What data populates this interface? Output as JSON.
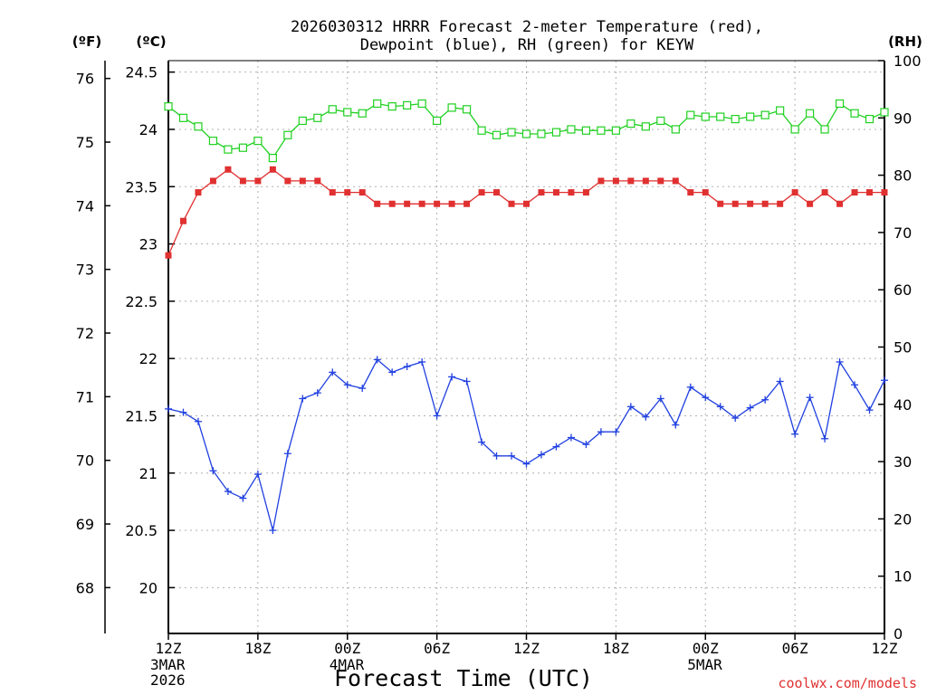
{
  "chart_data": {
    "type": "line",
    "title_lines": [
      "2026030312 HRRR Forecast 2-meter Temperature (red),",
      "Dewpoint (blue), RH (green) for KEYW"
    ],
    "xlabel": "Forecast Time (UTC)",
    "credit": "coolwx.com/models",
    "unit_labels": {
      "f": "(ºF)",
      "c": "(ºC)",
      "rh": "(RH)"
    },
    "x_ticks": [
      {
        "hour": 0,
        "label": "12Z",
        "sub": [
          "3MAR",
          "2026"
        ]
      },
      {
        "hour": 6,
        "label": "18Z",
        "sub": []
      },
      {
        "hour": 12,
        "label": "00Z",
        "sub": [
          "4MAR"
        ]
      },
      {
        "hour": 18,
        "label": "06Z",
        "sub": []
      },
      {
        "hour": 24,
        "label": "12Z",
        "sub": []
      },
      {
        "hour": 30,
        "label": "18Z",
        "sub": []
      },
      {
        "hour": 36,
        "label": "00Z",
        "sub": [
          "5MAR"
        ]
      },
      {
        "hour": 42,
        "label": "06Z",
        "sub": []
      },
      {
        "hour": 48,
        "label": "12Z",
        "sub": []
      }
    ],
    "xlim": [
      0,
      48
    ],
    "c_axis": {
      "ylim": [
        19.6,
        24.6
      ],
      "ticks": [
        "20",
        "20.5",
        "21",
        "21.5",
        "22",
        "22.5",
        "23",
        "23.5",
        "24",
        "24.5"
      ]
    },
    "f_axis": {
      "ylim": [
        67.28,
        76.28
      ],
      "ticks": [
        "68",
        "69",
        "70",
        "71",
        "72",
        "73",
        "74",
        "75",
        "76"
      ]
    },
    "rh_axis": {
      "ylim": [
        0,
        100
      ],
      "ticks": [
        "0",
        "10",
        "20",
        "30",
        "40",
        "50",
        "60",
        "70",
        "80",
        "90",
        "100"
      ]
    },
    "series": [
      {
        "name": "Temperature",
        "axis": "c",
        "color": "#e03030",
        "marker": "filled-square",
        "values": [
          22.9,
          23.2,
          23.45,
          23.55,
          23.65,
          23.55,
          23.55,
          23.65,
          23.55,
          23.55,
          23.55,
          23.45,
          23.45,
          23.45,
          23.35,
          23.35,
          23.35,
          23.35,
          23.35,
          23.35,
          23.35,
          23.45,
          23.45,
          23.35,
          23.35,
          23.45,
          23.45,
          23.45,
          23.45,
          23.55,
          23.55,
          23.55,
          23.55,
          23.55,
          23.55,
          23.45,
          23.45,
          23.35,
          23.35,
          23.35,
          23.35,
          23.35,
          23.45,
          23.35,
          23.45,
          23.35,
          23.45,
          23.45,
          23.45
        ]
      },
      {
        "name": "Dewpoint",
        "axis": "c",
        "color": "#2040e0",
        "marker": "plus",
        "values": [
          21.56,
          21.53,
          21.45,
          21.02,
          20.84,
          20.78,
          20.99,
          20.5,
          21.17,
          21.65,
          21.7,
          21.88,
          21.77,
          21.74,
          21.99,
          21.88,
          21.93,
          21.97,
          21.5,
          21.84,
          21.8,
          21.27,
          21.15,
          21.15,
          21.08,
          21.16,
          21.23,
          21.31,
          21.25,
          21.36,
          21.36,
          21.58,
          21.49,
          21.65,
          21.42,
          21.75,
          21.66,
          21.58,
          21.48,
          21.57,
          21.64,
          21.8,
          21.34,
          21.66,
          21.3,
          21.97,
          21.77,
          21.55,
          21.81
        ]
      },
      {
        "name": "RH",
        "axis": "rh",
        "color": "#20d020",
        "marker": "open-square",
        "values": [
          92,
          90,
          88.5,
          86,
          84.5,
          84.8,
          86,
          83,
          87,
          89.5,
          90,
          91.5,
          91,
          90.8,
          92.5,
          92,
          92.2,
          92.5,
          89.5,
          91.8,
          91.5,
          87.8,
          87,
          87.5,
          87.2,
          87.2,
          87.5,
          88,
          87.8,
          87.8,
          87.8,
          89,
          88.5,
          89.5,
          88,
          90.5,
          90.2,
          90.2,
          89.8,
          90.2,
          90.5,
          91.3,
          88,
          90.8,
          88,
          92.5,
          90.8,
          89.8,
          91
        ]
      }
    ]
  }
}
